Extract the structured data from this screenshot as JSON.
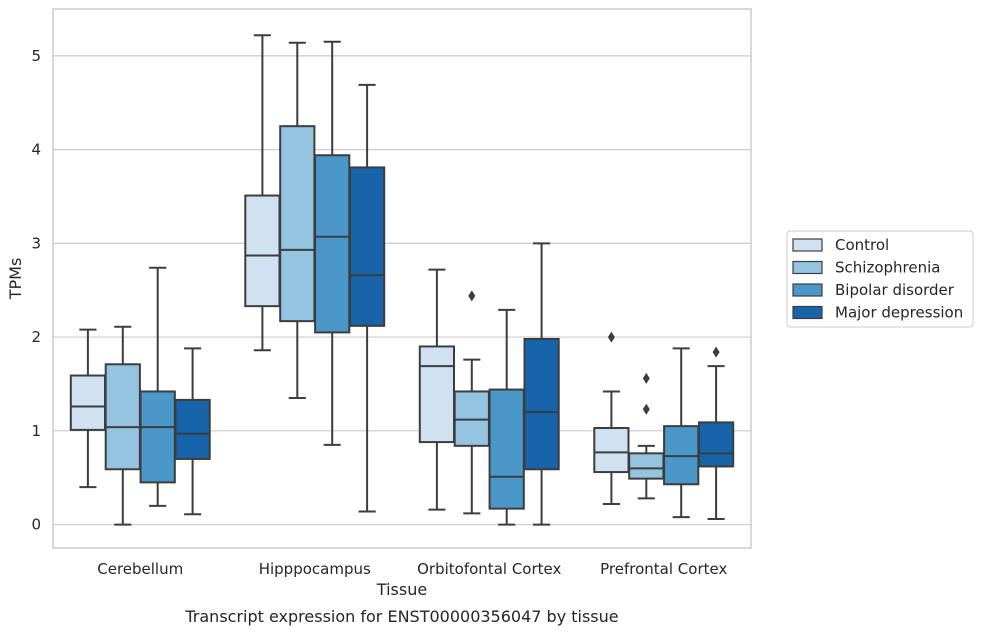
{
  "chart_data": {
    "type": "box",
    "title": "",
    "caption": "Transcript expression for ENST00000356047 by tissue",
    "xlabel": "Tissue",
    "ylabel": "TPMs",
    "ylim": [
      -0.25,
      5.5
    ],
    "yticks": [
      0,
      1,
      2,
      3,
      4,
      5
    ],
    "grid": true,
    "legend_position": "right",
    "categories": [
      "Cerebellum",
      "Hipppocampus",
      "Orbitofontal Cortex",
      "Prefrontal Cortex"
    ],
    "series": [
      {
        "name": "Control",
        "color": "#d0e1f2",
        "boxes": [
          {
            "whislo": 0.4,
            "q1": 1.01,
            "med": 1.26,
            "q3": 1.59,
            "whishi": 2.08,
            "fliers": []
          },
          {
            "whislo": 1.86,
            "q1": 2.33,
            "med": 2.87,
            "q3": 3.51,
            "whishi": 5.22,
            "fliers": []
          },
          {
            "whislo": 0.16,
            "q1": 0.88,
            "med": 1.69,
            "q3": 1.9,
            "whishi": 2.72,
            "fliers": []
          },
          {
            "whislo": 0.22,
            "q1": 0.56,
            "med": 0.77,
            "q3": 1.03,
            "whishi": 1.42,
            "fliers": [
              2.0
            ]
          }
        ]
      },
      {
        "name": "Schizophrenia",
        "color": "#94c4df",
        "boxes": [
          {
            "whislo": 0.0,
            "q1": 0.59,
            "med": 1.04,
            "q3": 1.71,
            "whishi": 2.11,
            "fliers": []
          },
          {
            "whislo": 1.35,
            "q1": 2.17,
            "med": 2.93,
            "q3": 4.25,
            "whishi": 5.14,
            "fliers": []
          },
          {
            "whislo": 0.12,
            "q1": 0.84,
            "med": 1.12,
            "q3": 1.42,
            "whishi": 1.76,
            "fliers": [
              2.44
            ]
          },
          {
            "whislo": 0.28,
            "q1": 0.49,
            "med": 0.6,
            "q3": 0.76,
            "whishi": 0.84,
            "fliers": [
              1.23,
              1.56
            ]
          }
        ]
      },
      {
        "name": "Bipolar disorder",
        "color": "#4a98c9",
        "boxes": [
          {
            "whislo": 0.2,
            "q1": 0.45,
            "med": 1.04,
            "q3": 1.42,
            "whishi": 2.74,
            "fliers": []
          },
          {
            "whislo": 0.85,
            "q1": 2.05,
            "med": 3.07,
            "q3": 3.94,
            "whishi": 5.15,
            "fliers": []
          },
          {
            "whislo": 0.0,
            "q1": 0.17,
            "med": 0.51,
            "q3": 1.44,
            "whishi": 2.29,
            "fliers": []
          },
          {
            "whislo": 0.08,
            "q1": 0.43,
            "med": 0.73,
            "q3": 1.05,
            "whishi": 1.88,
            "fliers": []
          }
        ]
      },
      {
        "name": "Major depression",
        "color": "#1764ab",
        "boxes": [
          {
            "whislo": 0.11,
            "q1": 0.7,
            "med": 0.97,
            "q3": 1.33,
            "whishi": 1.88,
            "fliers": []
          },
          {
            "whislo": 0.14,
            "q1": 2.12,
            "med": 2.66,
            "q3": 3.81,
            "whishi": 4.69,
            "fliers": []
          },
          {
            "whislo": 0.0,
            "q1": 0.59,
            "med": 1.2,
            "q3": 1.98,
            "whishi": 3.0,
            "fliers": []
          },
          {
            "whislo": 0.06,
            "q1": 0.62,
            "med": 0.76,
            "q3": 1.09,
            "whishi": 1.69,
            "fliers": [
              1.84
            ]
          }
        ]
      }
    ]
  }
}
